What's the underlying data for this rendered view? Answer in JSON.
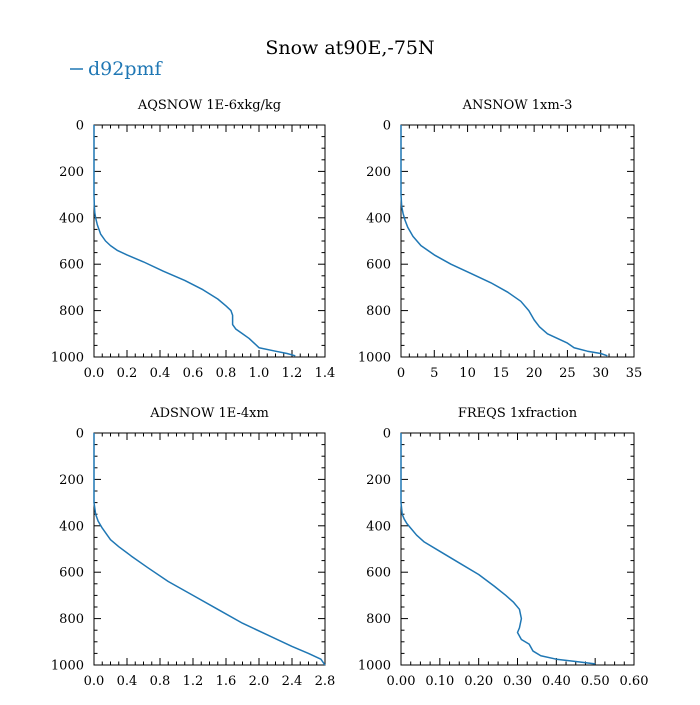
{
  "page": {
    "title": "Snow at90E,-75N"
  },
  "legend": {
    "label": "d92pmf"
  },
  "colors": {
    "series": "#1f77b4",
    "axes": "#000000"
  },
  "chart_data": [
    {
      "type": "line",
      "title": "AQSNOW  1E-6xkg/kg",
      "series_name": "d92pmf",
      "xlim": [
        0,
        1.4
      ],
      "xticks": [
        "0.0",
        "0.2",
        "0.4",
        "0.6",
        "0.8",
        "1.0",
        "1.2",
        "1.4"
      ],
      "xtick_values": [
        0,
        0.2,
        0.4,
        0.6,
        0.8,
        1.0,
        1.2,
        1.4
      ],
      "ylim": [
        1000,
        0
      ],
      "yticks": [
        "0",
        "200",
        "400",
        "600",
        "800",
        "1000"
      ],
      "ytick_values": [
        0,
        200,
        400,
        600,
        800,
        1000
      ],
      "x": [
        0,
        0,
        0.002,
        0.005,
        0.01,
        0.02,
        0.04,
        0.07,
        0.1,
        0.14,
        0.2,
        0.3,
        0.42,
        0.55,
        0.66,
        0.75,
        0.8,
        0.83,
        0.84,
        0.84,
        0.86,
        0.9,
        0.94,
        0.97,
        1.0,
        1.1,
        1.17,
        1.22
      ],
      "y": [
        0,
        300,
        350,
        380,
        400,
        430,
        470,
        500,
        520,
        540,
        560,
        590,
        630,
        670,
        710,
        750,
        780,
        800,
        820,
        860,
        880,
        900,
        920,
        940,
        960,
        975,
        985,
        995
      ]
    },
    {
      "type": "line",
      "title": "ANSNOW  1xm-3",
      "series_name": "d92pmf",
      "xlim": [
        0,
        35
      ],
      "xticks": [
        "0",
        "5",
        "10",
        "15",
        "20",
        "25",
        "30",
        "35"
      ],
      "xtick_values": [
        0,
        5,
        10,
        15,
        20,
        25,
        30,
        35
      ],
      "ylim": [
        1000,
        0
      ],
      "yticks": [
        "0",
        "200",
        "400",
        "600",
        "800",
        "1000"
      ],
      "ytick_values": [
        0,
        200,
        400,
        600,
        800,
        1000
      ],
      "x": [
        0,
        0,
        0.1,
        0.3,
        0.6,
        1.0,
        1.8,
        3.0,
        5.0,
        7.5,
        10.5,
        13.5,
        16.0,
        18.0,
        19.2,
        20.0,
        20.8,
        22.0,
        23.5,
        25.0,
        26.0,
        28.0,
        30.0,
        31.0
      ],
      "y": [
        0,
        300,
        350,
        380,
        410,
        440,
        480,
        520,
        560,
        600,
        640,
        680,
        720,
        760,
        800,
        840,
        870,
        900,
        920,
        940,
        960,
        975,
        985,
        995
      ]
    },
    {
      "type": "line",
      "title": "ADSNOW  1E-4xm",
      "series_name": "d92pmf",
      "xlim": [
        0,
        2.8
      ],
      "xticks": [
        "0.0",
        "0.4",
        "0.8",
        "1.2",
        "1.6",
        "2.0",
        "2.4",
        "2.8"
      ],
      "xtick_values": [
        0,
        0.4,
        0.8,
        1.2,
        1.6,
        2.0,
        2.4,
        2.8
      ],
      "ylim": [
        1000,
        0
      ],
      "yticks": [
        "0",
        "200",
        "400",
        "600",
        "800",
        "1000"
      ],
      "ytick_values": [
        0,
        200,
        400,
        600,
        800,
        1000
      ],
      "x": [
        0,
        0,
        0.02,
        0.05,
        0.1,
        0.16,
        0.2,
        0.3,
        0.45,
        0.65,
        0.9,
        1.2,
        1.5,
        1.8,
        2.1,
        2.4,
        2.6,
        2.75,
        2.8
      ],
      "y": [
        0,
        300,
        350,
        380,
        410,
        440,
        460,
        490,
        530,
        580,
        640,
        700,
        760,
        820,
        870,
        920,
        950,
        975,
        1000
      ]
    },
    {
      "type": "line",
      "title": "FREQS  1xfraction",
      "series_name": "d92pmf",
      "xlim": [
        0,
        0.6
      ],
      "xticks": [
        "0.00",
        "0.10",
        "0.20",
        "0.30",
        "0.40",
        "0.50",
        "0.60"
      ],
      "xtick_values": [
        0,
        0.1,
        0.2,
        0.3,
        0.4,
        0.5,
        0.6
      ],
      "ylim": [
        1000,
        0
      ],
      "yticks": [
        "0",
        "200",
        "400",
        "600",
        "800",
        "1000"
      ],
      "ytick_values": [
        0,
        200,
        400,
        600,
        800,
        1000
      ],
      "x": [
        0,
        0,
        0.003,
        0.008,
        0.015,
        0.025,
        0.04,
        0.06,
        0.1,
        0.15,
        0.2,
        0.24,
        0.27,
        0.29,
        0.305,
        0.31,
        0.305,
        0.3,
        0.31,
        0.33,
        0.34,
        0.36,
        0.4,
        0.45,
        0.5
      ],
      "y": [
        0,
        300,
        350,
        370,
        390,
        410,
        440,
        470,
        510,
        560,
        610,
        660,
        700,
        730,
        760,
        800,
        840,
        860,
        890,
        910,
        940,
        960,
        975,
        985,
        995
      ]
    }
  ]
}
